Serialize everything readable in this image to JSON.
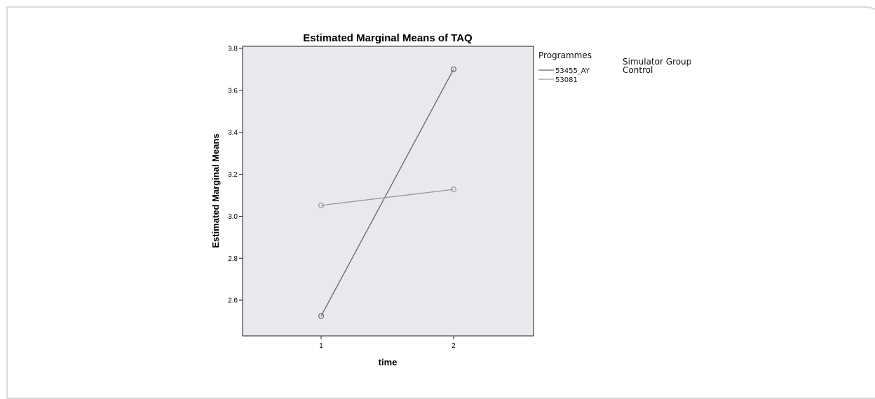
{
  "chart_data": {
    "type": "line",
    "title": "Estimated Marginal Means of TAQ",
    "xlabel": "time",
    "ylabel": "Estimated Marginal Means",
    "categories": [
      "1",
      "2"
    ],
    "ylim": [
      2.43,
      3.81
    ],
    "yticks": [
      "2.6",
      "2.8",
      "3.0",
      "3.2",
      "3.4",
      "3.6",
      "3.8"
    ],
    "series": [
      {
        "name": "53455_AY",
        "values": [
          2.525,
          3.7
        ],
        "color": "#666666"
      },
      {
        "name": "53081",
        "values": [
          3.052,
          3.128
        ],
        "color": "#9a9a9a"
      }
    ],
    "legend": {
      "title": "Programmes",
      "position": "right",
      "annotations": [
        "Simulator Group",
        "Control"
      ]
    },
    "plot_background": "#e8e9ed",
    "marker": "open-circle",
    "grid": false
  }
}
